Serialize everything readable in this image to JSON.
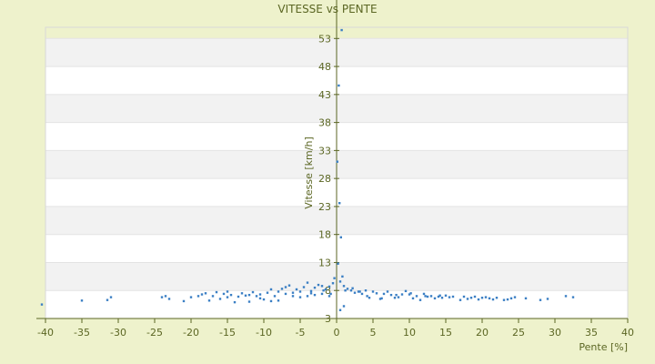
{
  "chart_data": {
    "type": "scatter",
    "title": "VITESSE vs PENTE",
    "xlabel": "Pente [%]",
    "ylabel": "Vitesse [km/h]",
    "xlim": [
      -40,
      40
    ],
    "ylim": [
      3,
      56
    ],
    "x_ticks": [
      "-40",
      "-35",
      "-30",
      "-25",
      "-20",
      "-15",
      "-10",
      "-5",
      "0",
      "5",
      "10",
      "15",
      "20",
      "25",
      "30",
      "35",
      "40"
    ],
    "y_ticks": [
      "3",
      "8",
      "13",
      "18",
      "23",
      "28",
      "33",
      "38",
      "43",
      "48",
      "53"
    ],
    "grid": true,
    "legend": "none",
    "colors": {
      "points": "#3b7fc4",
      "axis": "#5b6623",
      "band_light": "#ffffff",
      "band_dark": "#f2f2f2",
      "background": "#eef2cc"
    },
    "series": [
      {
        "x": [
          -40.5,
          -35,
          -31.5,
          -31,
          -24,
          -23.5,
          -23,
          -21,
          -20,
          -19,
          -18.5,
          -18,
          -17.5,
          -17,
          -16.5,
          -16,
          -15.5,
          -15,
          -14.5,
          -14,
          -13.5,
          -13,
          -12.5,
          -12,
          -11.5,
          -11,
          -10.5,
          -10,
          -9.5,
          -9,
          -8.5,
          -8,
          -7.5,
          -7,
          -6.5,
          -6,
          -5.5,
          -5,
          -4.5,
          -4,
          -3.5,
          -3,
          -2.5,
          -2,
          -1.5,
          -1,
          -0.5,
          -12,
          -9,
          -6,
          -3,
          -1,
          -15,
          -8,
          -4,
          -2,
          -0.3,
          -10.5,
          -7,
          -5,
          -3.5,
          -1.8,
          -0.8,
          0.5,
          1,
          1.5,
          2,
          2.5,
          3,
          3.5,
          4,
          4.5,
          5,
          5.5,
          6,
          6.5,
          7,
          7.5,
          8,
          8.5,
          9,
          9.5,
          10,
          10.5,
          11,
          11.5,
          12,
          12.5,
          13,
          13.5,
          14,
          14.5,
          15,
          15.5,
          16,
          17,
          17.5,
          18,
          18.5,
          19,
          19.5,
          20,
          20.5,
          21,
          21.5,
          22,
          23,
          23.5,
          24,
          24.5,
          26,
          28,
          29,
          31.5,
          32.5,
          0.8,
          1.2,
          2.2,
          3.2,
          4.2,
          6.2,
          8.2,
          10.2,
          12.2,
          14.2,
          0.5,
          1,
          0.2,
          0.6,
          0.4,
          0.1,
          0.3,
          0.7
        ],
        "y": [
          5.5,
          6.2,
          6.3,
          6.8,
          6.8,
          7.0,
          6.5,
          6.1,
          6.8,
          7.0,
          7.3,
          7.5,
          6.2,
          7.0,
          7.7,
          6.5,
          7.4,
          7.8,
          7.2,
          5.9,
          6.9,
          7.5,
          7.1,
          6.0,
          7.7,
          7.0,
          7.3,
          6.4,
          7.6,
          8.2,
          7.0,
          7.8,
          8.3,
          7.4,
          8.9,
          7.6,
          8.2,
          7.8,
          8.6,
          9.4,
          7.9,
          8.5,
          9.0,
          8.8,
          8.2,
          8.7,
          9.3,
          7.2,
          6.1,
          7.0,
          7.2,
          7.0,
          6.8,
          6.2,
          7.0,
          7.4,
          10.2,
          6.6,
          8.6,
          6.8,
          7.5,
          8.0,
          7.4,
          9.6,
          8.8,
          8.3,
          8.0,
          7.6,
          7.8,
          7.4,
          8.0,
          6.7,
          7.8,
          7.5,
          6.5,
          7.4,
          7.8,
          7.2,
          6.7,
          6.8,
          7.3,
          7.9,
          7.3,
          6.6,
          7.0,
          6.3,
          7.4,
          6.9,
          7.0,
          6.6,
          6.9,
          6.7,
          7.1,
          6.8,
          6.9,
          6.3,
          6.9,
          6.5,
          6.7,
          6.9,
          6.4,
          6.7,
          6.8,
          6.6,
          6.4,
          6.7,
          6.3,
          6.4,
          6.6,
          6.8,
          6.6,
          6.3,
          6.5,
          7.0,
          6.8,
          10.5,
          8.0,
          8.4,
          7.8,
          7.0,
          6.6,
          7.2,
          7.5,
          7.0,
          7.1,
          4.5,
          5.2,
          12.8,
          17.5,
          23.6,
          31.0,
          44.6,
          54.5
        ]
      }
    ]
  }
}
